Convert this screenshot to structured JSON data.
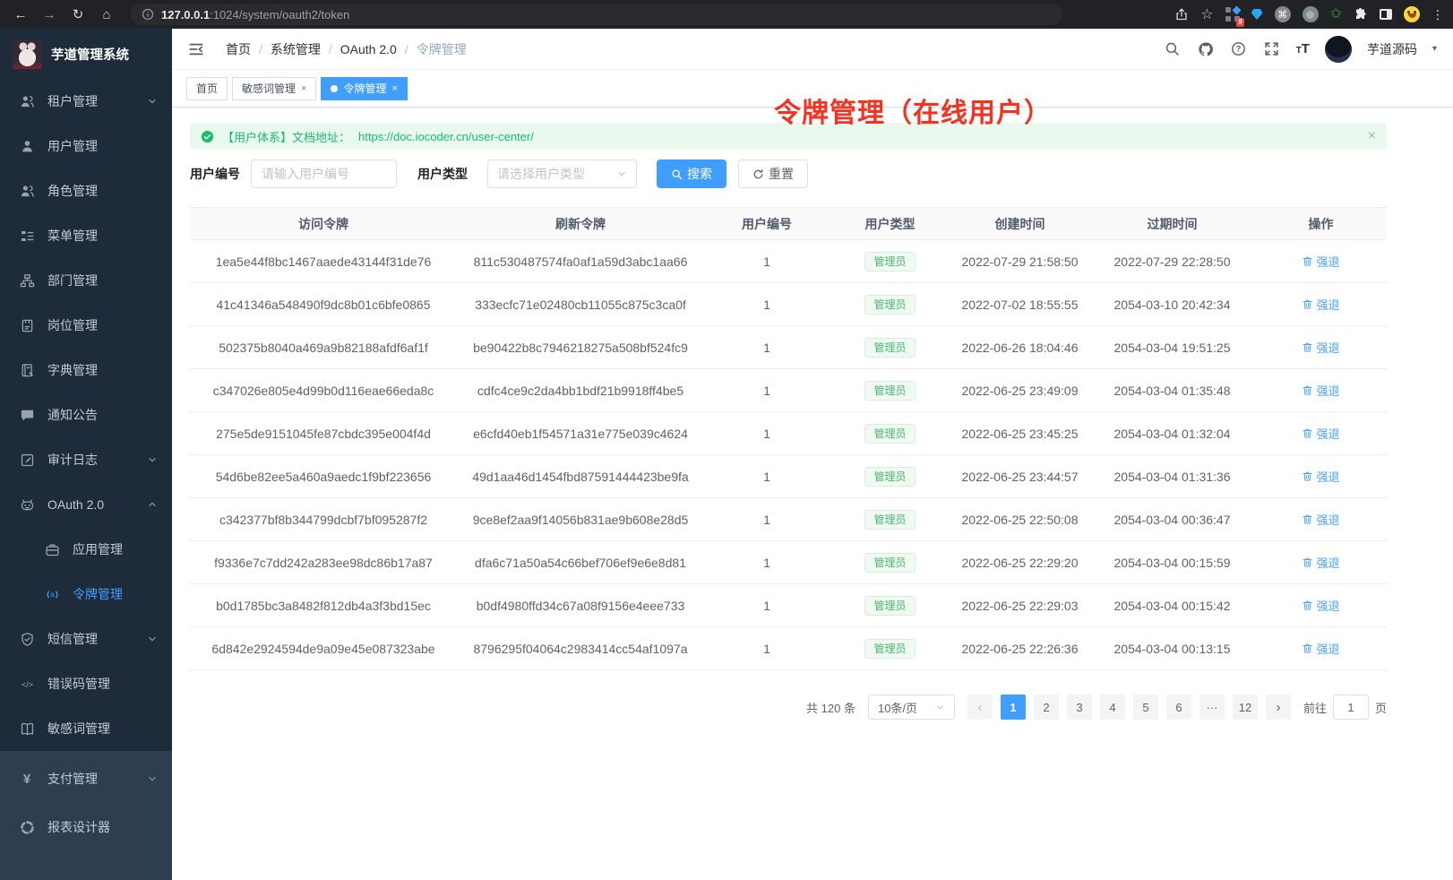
{
  "colors": {
    "accent": "#409eff",
    "success": "#19be6b",
    "annotation": "#f6321f",
    "link": "#4aa3ff",
    "sidebar_bg": "#1e2b3b",
    "sidebar_bg_light": "#2d3e50"
  },
  "browser": {
    "url_host": "127.0.0.1",
    "url_path": ":1024/system/oauth2/token",
    "extension_badge": "9"
  },
  "sidebar": {
    "app_title": "芋道管理系统",
    "menu": [
      {
        "label": "租户管理",
        "icon": "tenant-icon",
        "chevron": "down"
      },
      {
        "label": "用户管理",
        "icon": "user-icon"
      },
      {
        "label": "角色管理",
        "icon": "role-icon"
      },
      {
        "label": "菜单管理",
        "icon": "menu-icon"
      },
      {
        "label": "部门管理",
        "icon": "dept-icon"
      },
      {
        "label": "岗位管理",
        "icon": "post-icon"
      },
      {
        "label": "字典管理",
        "icon": "dict-icon"
      },
      {
        "label": "通知公告",
        "icon": "notice-icon"
      },
      {
        "label": "审计日志",
        "icon": "audit-icon",
        "chevron": "down"
      },
      {
        "label": "OAuth 2.0",
        "icon": "oauth-icon",
        "chevron": "up",
        "children": [
          {
            "label": "应用管理",
            "icon": "app-icon"
          },
          {
            "label": "令牌管理",
            "icon": "token-icon",
            "active": true
          }
        ]
      },
      {
        "label": "短信管理",
        "icon": "sms-icon",
        "chevron": "down"
      },
      {
        "label": "错误码管理",
        "icon": "errcode-icon"
      },
      {
        "label": "敏感词管理",
        "icon": "sensitive-icon"
      }
    ],
    "menu_bottom": [
      {
        "label": "支付管理",
        "icon": "pay-icon",
        "chevron": "down"
      },
      {
        "label": "报表设计器",
        "icon": "report-icon"
      }
    ]
  },
  "navbar": {
    "breadcrumb": [
      "首页",
      "系统管理",
      "OAuth 2.0",
      "令牌管理"
    ],
    "username": "芋道源码"
  },
  "tabs": [
    {
      "label": "首页"
    },
    {
      "label": "敏感词管理"
    },
    {
      "label": "令牌管理"
    }
  ],
  "annotation": {
    "text": "令牌管理（在线用户）"
  },
  "alert": {
    "text": "【用户体系】文档地址：",
    "link": "https://doc.iocoder.cn/user-center/"
  },
  "filters": {
    "user_id_label": "用户编号",
    "user_id_placeholder": "请输入用户编号",
    "user_type_label": "用户类型",
    "user_type_placeholder": "请选择用户类型",
    "search_label": "搜索",
    "reset_label": "重置"
  },
  "table": {
    "columns": [
      "访问令牌",
      "刷新令牌",
      "用户编号",
      "用户类型",
      "创建时间",
      "过期时间",
      "操作"
    ],
    "action_label": "强退",
    "rows": [
      {
        "access": "1ea5e44f8bc1467aaede43144f31de76",
        "refresh": "811c530487574fa0af1a59d3abc1aa66",
        "user_id": "1",
        "user_type": "管理员",
        "created": "2022-07-29 21:58:50",
        "expires": "2022-07-29 22:28:50"
      },
      {
        "access": "41c41346a548490f9dc8b01c6bfe0865",
        "refresh": "333ecfc71e02480cb11055c875c3ca0f",
        "user_id": "1",
        "user_type": "管理员",
        "created": "2022-07-02 18:55:55",
        "expires": "2054-03-10 20:42:34"
      },
      {
        "access": "502375b8040a469a9b82188afdf6af1f",
        "refresh": "be90422b8c7946218275a508bf524fc9",
        "user_id": "1",
        "user_type": "管理员",
        "created": "2022-06-26 18:04:46",
        "expires": "2054-03-04 19:51:25"
      },
      {
        "access": "c347026e805e4d99b0d116eae66eda8c",
        "refresh": "cdfc4ce9c2da4bb1bdf21b9918ff4be5",
        "user_id": "1",
        "user_type": "管理员",
        "created": "2022-06-25 23:49:09",
        "expires": "2054-03-04 01:35:48"
      },
      {
        "access": "275e5de9151045fe87cbdc395e004f4d",
        "refresh": "e6cfd40eb1f54571a31e775e039c4624",
        "user_id": "1",
        "user_type": "管理员",
        "created": "2022-06-25 23:45:25",
        "expires": "2054-03-04 01:32:04"
      },
      {
        "access": "54d6be82ee5a460a9aedc1f9bf223656",
        "refresh": "49d1aa46d1454fbd87591444423be9fa",
        "user_id": "1",
        "user_type": "管理员",
        "created": "2022-06-25 23:44:57",
        "expires": "2054-03-04 01:31:36"
      },
      {
        "access": "c342377bf8b344799dcbf7bf095287f2",
        "refresh": "9ce8ef2aa9f14056b831ae9b608e28d5",
        "user_id": "1",
        "user_type": "管理员",
        "created": "2022-06-25 22:50:08",
        "expires": "2054-03-04 00:36:47"
      },
      {
        "access": "f9336e7c7dd242a283ee98dc86b17a87",
        "refresh": "dfa6c71a50a54c66bef706ef9e6e8d81",
        "user_id": "1",
        "user_type": "管理员",
        "created": "2022-06-25 22:29:20",
        "expires": "2054-03-04 00:15:59"
      },
      {
        "access": "b0d1785bc3a8482f812db4a3f3bd15ec",
        "refresh": "b0df4980ffd34c67a08f9156e4eee733",
        "user_id": "1",
        "user_type": "管理员",
        "created": "2022-06-25 22:29:03",
        "expires": "2054-03-04 00:15:42"
      },
      {
        "access": "6d842e2924594de9a09e45e087323abe",
        "refresh": "8796295f04064c2983414cc54af1097a",
        "user_id": "1",
        "user_type": "管理员",
        "created": "2022-06-25 22:26:36",
        "expires": "2054-03-04 00:13:15"
      }
    ]
  },
  "pagination": {
    "total_text": "共 120 条",
    "page_size": "10条/页",
    "pages": [
      "1",
      "2",
      "3",
      "4",
      "5",
      "6",
      "...",
      "12"
    ],
    "active_page": "1",
    "prev_icon": "‹",
    "next_icon": "›",
    "goto_label": "前往",
    "goto_value": "1",
    "page_suffix": "页"
  }
}
